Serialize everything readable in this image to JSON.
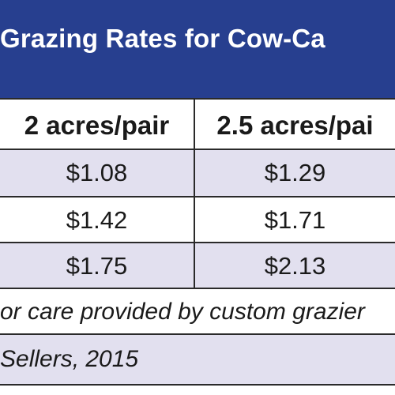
{
  "title": "Grazing Rates for Cow-Ca",
  "columns": [
    "2 acres/pair",
    "2.5 acres/pai"
  ],
  "rows": [
    [
      "$1.08",
      "$1.29"
    ],
    [
      "$1.42",
      "$1.71"
    ],
    [
      "$1.75",
      "$2.13"
    ]
  ],
  "note": "or care provided by custom grazier",
  "source": "Sellers, 2015",
  "colors": {
    "title_bg": "#273f8f",
    "title_text": "#ffffff",
    "row_shade": "#e2e0ef",
    "rule": "#2a2a2a"
  }
}
